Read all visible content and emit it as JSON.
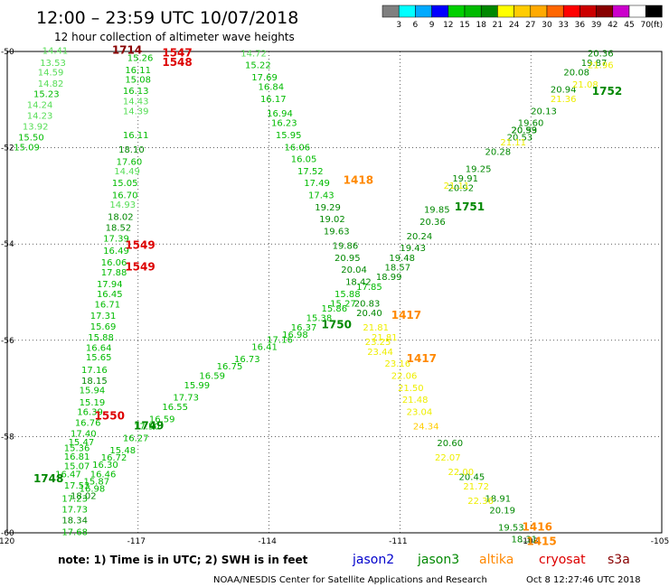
{
  "header": {
    "title": "12:00 – 23:59 UTC 10/07/2018",
    "subtitle": "12 hour collection of altimeter wave heights"
  },
  "legend": {
    "colors": [
      "#808080",
      "#00ffff",
      "#00aaff",
      "#0000ff",
      "#00d000",
      "#00bb00",
      "#008800",
      "#ffff00",
      "#ffcc00",
      "#ffaa00",
      "#ff6600",
      "#ff0000",
      "#cc0000",
      "#880000",
      "#cc00cc",
      "#ffffff",
      "#000000"
    ],
    "labels": [
      "3",
      "6",
      "9",
      "12",
      "15",
      "18",
      "21",
      "24",
      "27",
      "30",
      "33",
      "36",
      "39",
      "42",
      "45",
      "70",
      "(ft)"
    ]
  },
  "footer": {
    "note": "note: 1) Time is in UTC; 2) SWH is in feet",
    "satellites": [
      {
        "name": "jason2",
        "color": "#0000cc"
      },
      {
        "name": "jason3",
        "color": "#008800"
      },
      {
        "name": "altika",
        "color": "#ff8800"
      },
      {
        "name": "cryosat",
        "color": "#dd0000"
      },
      {
        "name": "s3a",
        "color": "#880000"
      }
    ],
    "credit": "NOAA/NESDIS Center for Satellite Applications and Research",
    "timestamp": "Oct  8 12:27:46 UTC 2018"
  },
  "chart_data": {
    "type": "scatter",
    "title": "12:00 – 23:59 UTC 10/07/2018",
    "subtitle": "12 hour collection of altimeter wave heights",
    "xlabel": "",
    "ylabel": "",
    "xlim": [
      -120,
      -105
    ],
    "ylim": [
      -60,
      -50
    ],
    "x_ticks": [
      "-120",
      "-117",
      "-114",
      "-111",
      "-108",
      "-105"
    ],
    "y_ticks": [
      "-50",
      "-52",
      "-54",
      "-56",
      "-58",
      "-60"
    ],
    "grid": true,
    "series": [
      {
        "name": "jason3",
        "tracks": [
          [
            -119.2,
            -50.05,
            "14.41"
          ],
          [
            -119.25,
            -50.3,
            "13.53"
          ],
          [
            -119.3,
            -50.5,
            "14.59"
          ],
          [
            -119.3,
            -50.73,
            "14.82"
          ],
          [
            -119.4,
            -50.95,
            "15.23"
          ],
          [
            -119.55,
            -51.17,
            "14.24"
          ],
          [
            -119.55,
            -51.4,
            "14.23"
          ],
          [
            -119.65,
            -51.62,
            "13.92"
          ],
          [
            -119.75,
            -51.85,
            "15.50"
          ],
          [
            -119.85,
            -52.05,
            "15.09"
          ],
          [
            -117.25,
            -50.2,
            "15.26"
          ],
          [
            -117.3,
            -50.45,
            "16.11"
          ],
          [
            -117.3,
            -50.65,
            "15.08"
          ],
          [
            -117.35,
            -50.88,
            "16.13"
          ],
          [
            -117.35,
            -51.1,
            "14.43"
          ],
          [
            -117.35,
            -51.3,
            "14.39"
          ],
          [
            -117.35,
            -51.8,
            "16.11"
          ],
          [
            -117.45,
            -52.1,
            "18.10"
          ],
          [
            -117.5,
            -52.35,
            "17.60"
          ],
          [
            -117.55,
            -52.55,
            "14.49"
          ],
          [
            -117.6,
            -52.8,
            "15.05"
          ],
          [
            -117.6,
            -53.05,
            "16.70"
          ],
          [
            -117.65,
            -53.25,
            "14.93"
          ],
          [
            -117.7,
            -53.5,
            "18.02"
          ],
          [
            -117.75,
            -53.72,
            "18.52"
          ],
          [
            -117.8,
            -53.95,
            "17.39"
          ],
          [
            -117.8,
            -54.2,
            "16.49"
          ],
          [
            -117.85,
            -54.45,
            "16.06"
          ],
          [
            -117.85,
            -54.65,
            "17.88"
          ],
          [
            -117.95,
            -54.9,
            "17.94"
          ],
          [
            -117.95,
            -55.1,
            "16.45"
          ],
          [
            -118.0,
            -55.32,
            "16.71"
          ],
          [
            -118.1,
            -55.55,
            "17.31"
          ],
          [
            -118.1,
            -55.78,
            "15.69"
          ],
          [
            -118.15,
            -56.0,
            "15.88"
          ],
          [
            -118.2,
            -56.22,
            "16.64"
          ],
          [
            -118.2,
            -56.42,
            "15.65"
          ],
          [
            -118.3,
            -56.68,
            "17.16"
          ],
          [
            -118.3,
            -56.9,
            "18.15"
          ],
          [
            -118.35,
            -57.1,
            "15.94"
          ],
          [
            -118.35,
            -57.35,
            "15.19"
          ],
          [
            -118.4,
            -57.55,
            "16.39"
          ],
          [
            -118.45,
            -57.78,
            "16.76"
          ],
          [
            -118.55,
            -58.0,
            "17.40"
          ],
          [
            -118.6,
            -58.18,
            "15.47"
          ],
          [
            -118.7,
            -58.3,
            "15.36"
          ],
          [
            -118.7,
            -58.48,
            "16.81"
          ],
          [
            -118.7,
            -58.68,
            "15.07"
          ],
          [
            -118.9,
            -58.85,
            "16.47"
          ],
          [
            -118.7,
            -59.08,
            "17.53"
          ],
          [
            -118.75,
            -59.35,
            "17.23"
          ],
          [
            -118.75,
            -59.58,
            "17.73"
          ],
          [
            -118.75,
            -59.8,
            "18.34"
          ],
          [
            -118.75,
            -60.05,
            "17.68"
          ],
          [
            -106.7,
            -50.1,
            "20.36"
          ],
          [
            -106.85,
            -50.3,
            "19.87"
          ],
          [
            -107.25,
            -50.5,
            "20.08"
          ],
          [
            -107.55,
            -50.85,
            "20.94"
          ],
          [
            -108.0,
            -51.3,
            "20.13"
          ],
          [
            -108.3,
            -51.55,
            "19.60"
          ],
          [
            -108.45,
            -51.7,
            "20.99"
          ],
          [
            -108.55,
            -51.85,
            "20.53"
          ],
          [
            -109.05,
            -52.15,
            "20.28"
          ],
          [
            -109.5,
            -52.5,
            "19.25"
          ],
          [
            -109.8,
            -52.7,
            "19.91"
          ],
          [
            -109.9,
            -52.9,
            "20.92"
          ],
          [
            -110.45,
            -53.35,
            "19.85"
          ],
          [
            -110.55,
            -53.6,
            "20.36"
          ],
          [
            -110.85,
            -53.9,
            "20.24"
          ],
          [
            -111.0,
            -54.15,
            "19.43"
          ],
          [
            -111.25,
            -54.35,
            "19.48"
          ],
          [
            -111.35,
            -54.55,
            "18.57"
          ],
          [
            -111.55,
            -54.75,
            "18.99"
          ],
          [
            -112.0,
            -54.95,
            "17.85"
          ],
          [
            -112.5,
            -55.1,
            "15.88"
          ],
          [
            -112.6,
            -55.3,
            "15.27"
          ],
          [
            -112.8,
            -55.4,
            "15.86"
          ],
          [
            -113.15,
            -55.6,
            "15.38"
          ],
          [
            -113.5,
            -55.8,
            "16.37"
          ],
          [
            -113.7,
            -55.95,
            "16.98"
          ],
          [
            -114.05,
            -56.05,
            "17.16"
          ],
          [
            -114.4,
            -56.2,
            "16.41"
          ],
          [
            -114.8,
            -56.45,
            "16.73"
          ],
          [
            -115.2,
            -56.6,
            "16.75"
          ],
          [
            -115.6,
            -56.8,
            "16.59"
          ],
          [
            -115.95,
            -57.0,
            "15.99"
          ],
          [
            -116.2,
            -57.25,
            "17.73"
          ],
          [
            -116.45,
            -57.45,
            "16.55"
          ],
          [
            -116.75,
            -57.7,
            "16.59"
          ],
          [
            -117.1,
            -57.85,
            "17.50"
          ],
          [
            -117.35,
            -58.1,
            "16.27"
          ],
          [
            -117.65,
            -58.35,
            "15.48"
          ],
          [
            -117.85,
            -58.5,
            "16.72"
          ],
          [
            -118.05,
            -58.65,
            "16.30"
          ],
          [
            -118.1,
            -58.85,
            "16.46"
          ],
          [
            -118.25,
            -59.0,
            "15.87"
          ],
          [
            -118.35,
            -59.15,
            "16.98"
          ],
          [
            -118.55,
            -59.3,
            "18.02"
          ],
          [
            -114.65,
            -50.1,
            "14.72"
          ],
          [
            -114.55,
            -50.35,
            "15.22"
          ],
          [
            -114.4,
            -50.6,
            "17.69"
          ],
          [
            -114.25,
            -50.8,
            "16.84"
          ],
          [
            -114.2,
            -51.05,
            "16.17"
          ],
          [
            -114.05,
            -51.35,
            "16.94"
          ],
          [
            -113.95,
            -51.55,
            "16.23"
          ],
          [
            -113.85,
            -51.8,
            "15.95"
          ],
          [
            -113.65,
            -52.05,
            "16.06"
          ],
          [
            -113.5,
            -52.3,
            "16.05"
          ],
          [
            -113.35,
            -52.55,
            "17.52"
          ],
          [
            -113.2,
            -52.8,
            "17.49"
          ],
          [
            -113.1,
            -53.05,
            "17.43"
          ],
          [
            -112.95,
            -53.3,
            "19.29"
          ],
          [
            -112.85,
            -53.55,
            "19.02"
          ],
          [
            -112.75,
            -53.8,
            "19.63"
          ],
          [
            -112.55,
            -54.1,
            "19.86"
          ],
          [
            -112.5,
            -54.35,
            "20.95"
          ],
          [
            -112.35,
            -54.6,
            "20.04"
          ],
          [
            -112.25,
            -54.85,
            "18.42"
          ],
          [
            -112.05,
            -55.3,
            "20.83"
          ],
          [
            -110.15,
            -58.2,
            "20.60"
          ],
          [
            -109.65,
            -58.9,
            "20.45"
          ],
          [
            -109.05,
            -59.35,
            "18.91"
          ],
          [
            -108.95,
            -59.6,
            "20.19"
          ],
          [
            -108.75,
            -59.95,
            "19.53"
          ],
          [
            -108.45,
            -60.2,
            "18.31"
          ]
        ]
      },
      {
        "name": "altika",
        "tracks": [
          [
            -106.7,
            -50.35,
            "21.96"
          ],
          [
            -107.05,
            -50.75,
            "21.08"
          ],
          [
            -107.55,
            -51.05,
            "21.36"
          ],
          [
            -108.45,
            -51.7,
            "20.53"
          ],
          [
            -108.7,
            -51.95,
            "21.11"
          ],
          [
            -110.0,
            -52.85,
            "21.11"
          ],
          [
            -112.0,
            -55.5,
            "20.40"
          ],
          [
            -111.85,
            -55.8,
            "21.81"
          ],
          [
            -111.8,
            -56.1,
            "23.25"
          ],
          [
            -111.75,
            -56.3,
            "23.44"
          ],
          [
            -111.35,
            -56.55,
            "23.16"
          ],
          [
            -111.2,
            -56.8,
            "22.06"
          ],
          [
            -111.05,
            -57.05,
            "21.50"
          ],
          [
            -110.95,
            -57.3,
            "21.48"
          ],
          [
            -110.85,
            -57.55,
            "23.04"
          ],
          [
            -110.7,
            -57.85,
            "24.34"
          ],
          [
            -110.2,
            -58.5,
            "22.07"
          ],
          [
            -109.9,
            -58.8,
            "22.00"
          ],
          [
            -109.55,
            -59.1,
            "21.72"
          ],
          [
            -109.45,
            -59.4,
            "22.36"
          ],
          [
            -111.65,
            -56.0,
            "21.81"
          ]
        ]
      }
    ],
    "time_labels": [
      {
        "label": "1714",
        "x": -117.6,
        "y": -50.05,
        "color": "#880000"
      },
      {
        "label": "1547",
        "x": -116.45,
        "y": -50.1,
        "color": "#dd0000"
      },
      {
        "label": "1548",
        "x": -116.45,
        "y": -50.3,
        "color": "#dd0000"
      },
      {
        "label": "1549",
        "x": -117.3,
        "y": -54.1,
        "color": "#dd0000"
      },
      {
        "label": "1549",
        "x": -117.3,
        "y": -54.55,
        "color": "#dd0000"
      },
      {
        "label": "1550",
        "x": -118.0,
        "y": -57.65,
        "color": "#dd0000"
      },
      {
        "label": "1749",
        "x": -117.1,
        "y": -57.85,
        "color": "#008800"
      },
      {
        "label": "1748",
        "x": -119.4,
        "y": -58.95,
        "color": "#008800"
      },
      {
        "label": "1750",
        "x": -112.8,
        "y": -55.75,
        "color": "#008800"
      },
      {
        "label": "1751",
        "x": -109.75,
        "y": -53.3,
        "color": "#008800"
      },
      {
        "label": "1752",
        "x": -106.6,
        "y": -50.9,
        "color": "#008800"
      },
      {
        "label": "1418",
        "x": -112.3,
        "y": -52.75,
        "color": "#ff8800"
      },
      {
        "label": "1417",
        "x": -111.2,
        "y": -55.55,
        "color": "#ff8800"
      },
      {
        "label": "1417",
        "x": -110.85,
        "y": -56.45,
        "color": "#ff8800"
      },
      {
        "label": "1416",
        "x": -108.2,
        "y": -59.95,
        "color": "#ff8800"
      },
      {
        "label": "1415",
        "x": -108.1,
        "y": -60.25,
        "color": "#ff8800"
      }
    ]
  }
}
